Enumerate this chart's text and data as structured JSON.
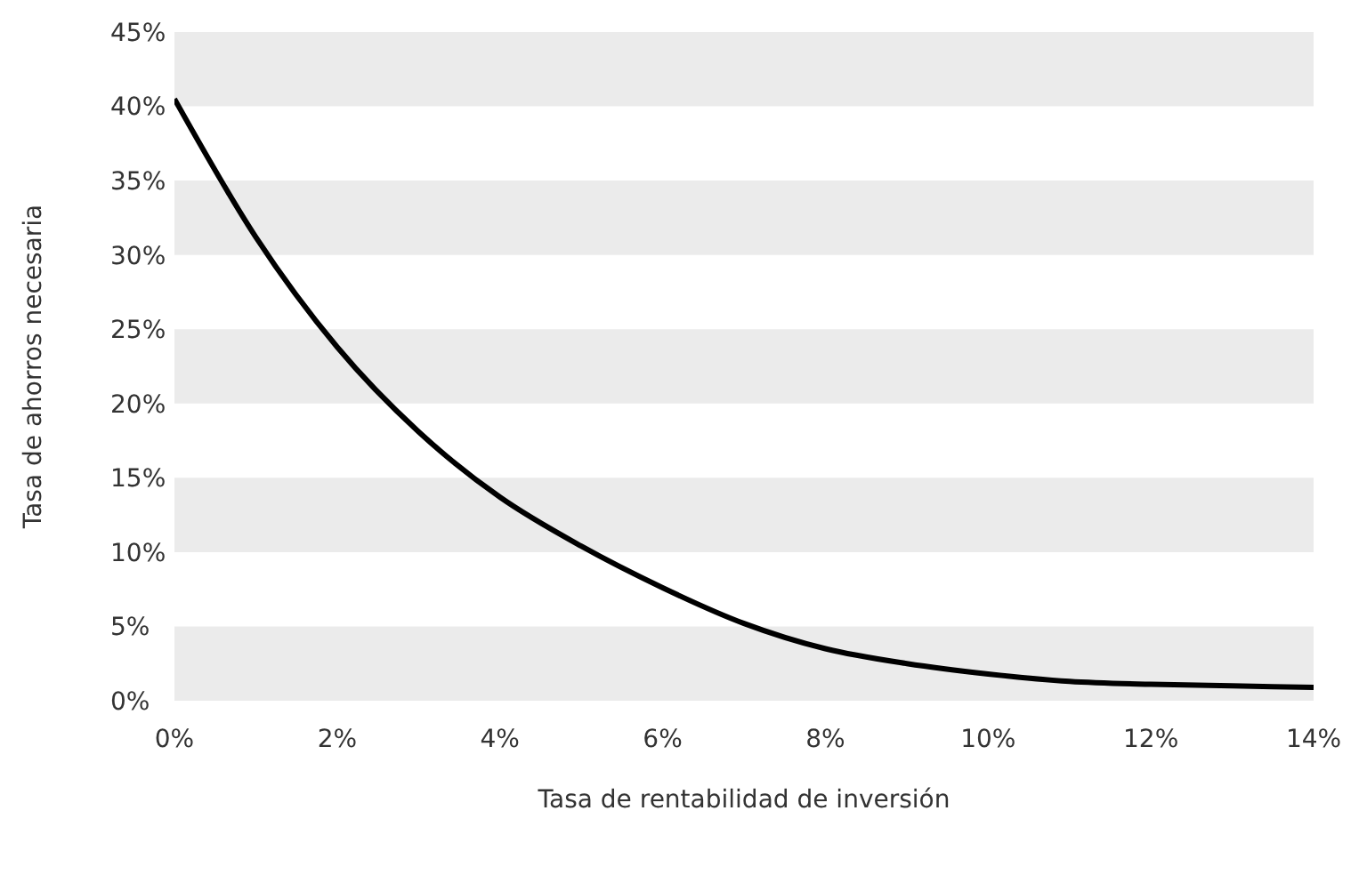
{
  "chart_data": {
    "type": "line",
    "xlabel": "Tasa de rentabilidad de inversión",
    "ylabel": "Tasa de ahorros necesaria",
    "x": [
      0,
      1,
      2,
      3,
      4,
      5,
      6,
      7,
      8,
      9,
      10,
      11,
      12,
      13,
      14
    ],
    "series": [
      {
        "color": "#000000",
        "values": [
          40.5,
          31.2,
          23.8,
          18.1,
          13.7,
          10.4,
          7.6,
          5.2,
          3.5,
          2.5,
          1.8,
          1.3,
          1.1,
          1.0,
          0.9
        ]
      }
    ],
    "xlim": [
      0,
      14
    ],
    "xticks": [
      {
        "value": 0,
        "label": "0%"
      },
      {
        "value": 2,
        "label": "2%"
      },
      {
        "value": 4,
        "label": "4%"
      },
      {
        "value": 6,
        "label": "6%"
      },
      {
        "value": 8,
        "label": "8%"
      },
      {
        "value": 10,
        "label": "10%"
      },
      {
        "value": 12,
        "label": "12%"
      },
      {
        "value": 14,
        "label": "14%"
      }
    ],
    "ylim": [
      0,
      45
    ],
    "yticks": [
      {
        "value": 0,
        "label": "0%"
      },
      {
        "value": 5,
        "label": "5%"
      },
      {
        "value": 10,
        "label": "10%"
      },
      {
        "value": 15,
        "label": "15%"
      },
      {
        "value": 20,
        "label": "20%"
      },
      {
        "value": 25,
        "label": "25%"
      },
      {
        "value": 30,
        "label": "30%"
      },
      {
        "value": 35,
        "label": "35%"
      },
      {
        "value": 40,
        "label": "40%"
      },
      {
        "value": 45,
        "label": "45%"
      }
    ],
    "bands": [
      {
        "axis": "y",
        "from": 0,
        "to": 5,
        "color": "#ebebeb"
      },
      {
        "axis": "y",
        "from": 10,
        "to": 15,
        "color": "#ebebeb"
      },
      {
        "axis": "y",
        "from": 20,
        "to": 25,
        "color": "#ebebeb"
      },
      {
        "axis": "y",
        "from": 30,
        "to": 35,
        "color": "#ebebeb"
      },
      {
        "axis": "y",
        "from": 40,
        "to": 45,
        "color": "#ebebeb"
      }
    ],
    "grid": false,
    "legend": false,
    "marker": "none",
    "line_style": "solid"
  }
}
